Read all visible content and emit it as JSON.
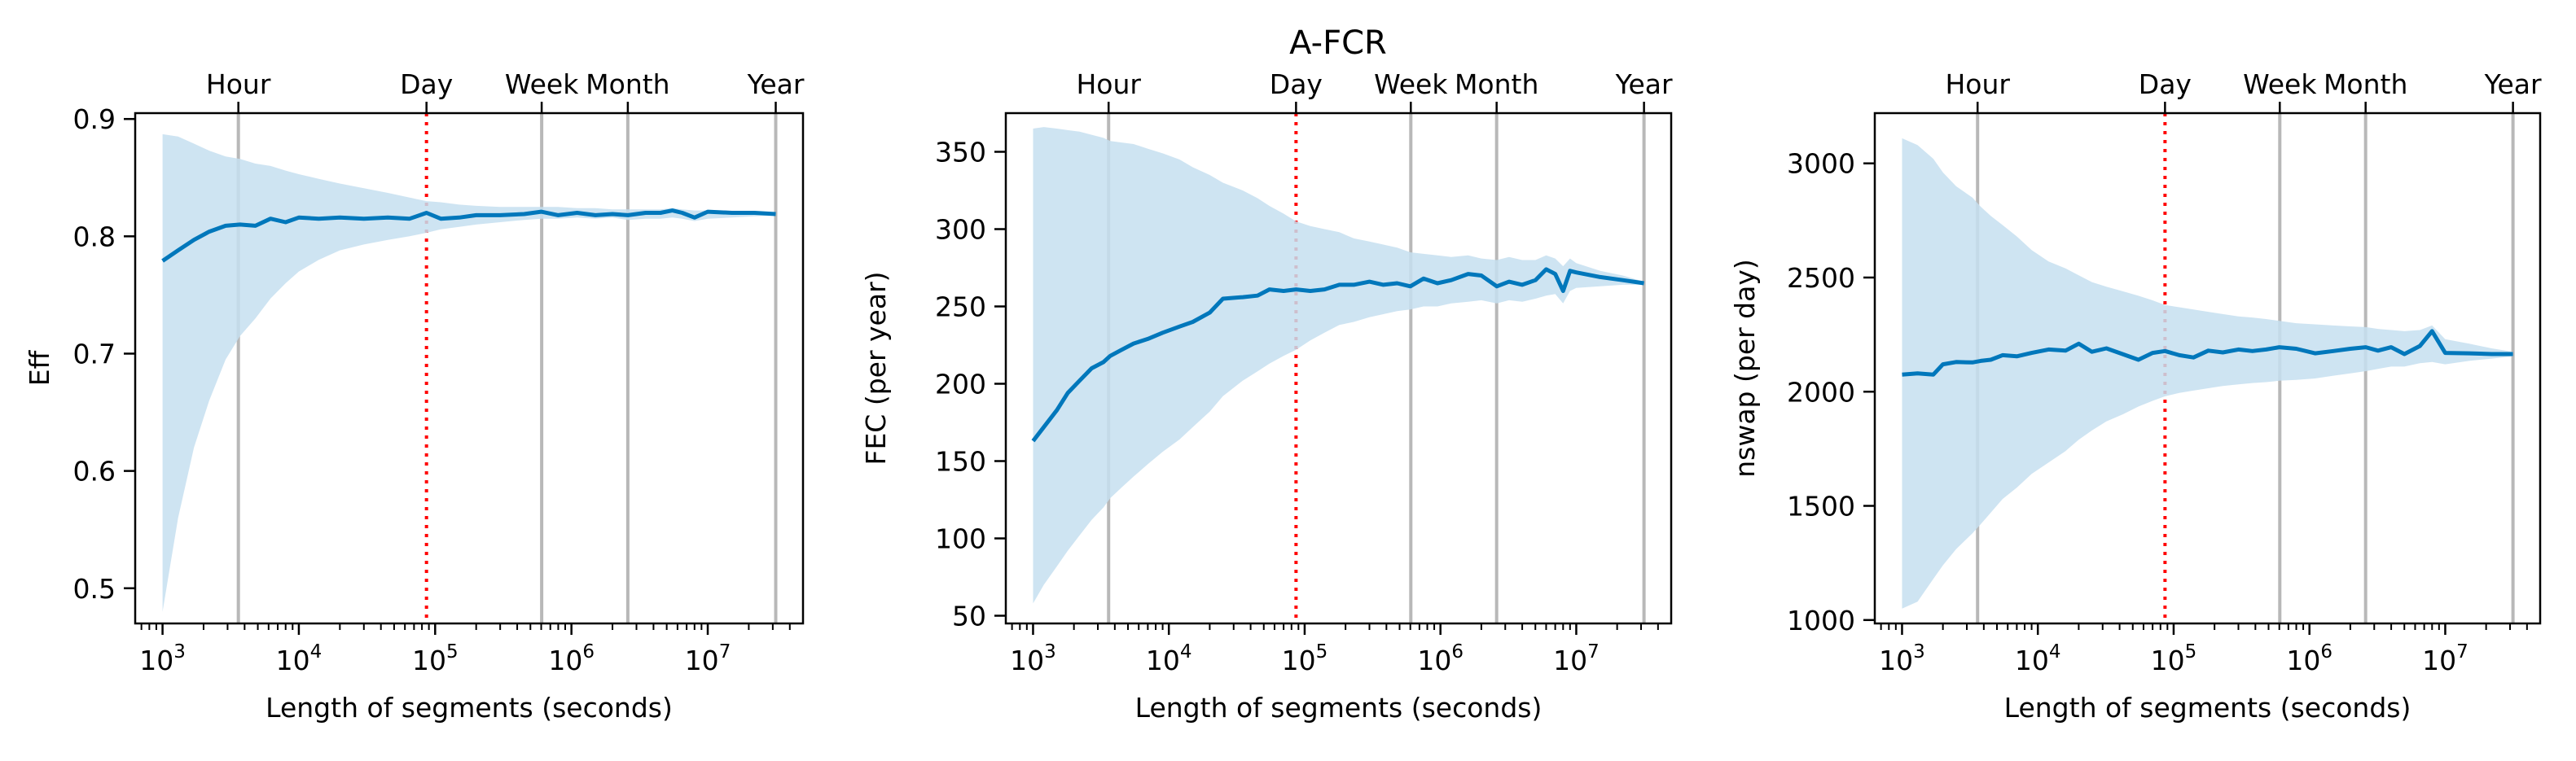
{
  "figure_title": "A-FCR",
  "colors": {
    "line": "#0077bb",
    "band": "#c6dff0",
    "ref_line": "#b8b8b8",
    "day_line": "#ff0000"
  },
  "chart_data": [
    {
      "type": "line",
      "title": "",
      "xlabel": "Length of segments (seconds)",
      "ylabel": "Eff",
      "xscale": "log",
      "xlim": [
        630,
        50000000
      ],
      "ylim": [
        0.47,
        0.905
      ],
      "yticks": [
        0.5,
        0.6,
        0.7,
        0.8,
        0.9
      ],
      "ytick_labels": [
        "0.5",
        "0.6",
        "0.7",
        "0.8",
        "0.9"
      ],
      "xtick_exponents": [
        3,
        4,
        5,
        6,
        7
      ],
      "top_ticks": [
        {
          "label": "Hour",
          "x": 3600
        },
        {
          "label": "Day",
          "x": 86400
        },
        {
          "label": "Week",
          "x": 604800
        },
        {
          "label": "Month",
          "x": 2592000
        },
        {
          "label": "Year",
          "x": 31536000
        }
      ],
      "x": [
        1000,
        1300,
        1700,
        2200,
        2900,
        3700,
        4800,
        6200,
        8000,
        10000,
        14000,
        20000,
        30000,
        45000,
        65000,
        86400,
        110000,
        150000,
        200000,
        300000,
        450000,
        600000,
        800000,
        1100000,
        1500000,
        2000000,
        2600000,
        3500000,
        4500000,
        5500000,
        6500000,
        8000000,
        10000000,
        15000000,
        22000000,
        31536000
      ],
      "mean": [
        0.779,
        0.788,
        0.797,
        0.804,
        0.809,
        0.81,
        0.809,
        0.815,
        0.812,
        0.816,
        0.815,
        0.816,
        0.815,
        0.816,
        0.815,
        0.82,
        0.815,
        0.816,
        0.818,
        0.818,
        0.819,
        0.821,
        0.818,
        0.82,
        0.818,
        0.819,
        0.818,
        0.82,
        0.82,
        0.822,
        0.82,
        0.816,
        0.821,
        0.82,
        0.82,
        0.819
      ],
      "upper": [
        0.887,
        0.885,
        0.879,
        0.873,
        0.868,
        0.866,
        0.862,
        0.86,
        0.856,
        0.853,
        0.849,
        0.845,
        0.841,
        0.837,
        0.833,
        0.83,
        0.829,
        0.827,
        0.826,
        0.825,
        0.825,
        0.825,
        0.825,
        0.824,
        0.824,
        0.823,
        0.823,
        0.823,
        0.823,
        0.824,
        0.823,
        0.822,
        0.822,
        0.821,
        0.82,
        0.819
      ],
      "lower": [
        0.48,
        0.56,
        0.62,
        0.66,
        0.695,
        0.715,
        0.73,
        0.747,
        0.76,
        0.77,
        0.78,
        0.788,
        0.793,
        0.797,
        0.8,
        0.803,
        0.806,
        0.808,
        0.81,
        0.812,
        0.814,
        0.815,
        0.815,
        0.816,
        0.815,
        0.816,
        0.814,
        0.815,
        0.815,
        0.816,
        0.815,
        0.813,
        0.815,
        0.816,
        0.817,
        0.818
      ],
      "series": [
        {
          "name": "mean",
          "values_key": "mean"
        }
      ]
    },
    {
      "type": "line",
      "title": "",
      "xlabel": "Length of segments (seconds)",
      "ylabel": "FEC (per year)",
      "xscale": "log",
      "xlim": [
        630,
        50000000
      ],
      "ylim": [
        45,
        375
      ],
      "yticks": [
        50,
        100,
        150,
        200,
        250,
        300,
        350
      ],
      "ytick_labels": [
        "50",
        "100",
        "150",
        "200",
        "250",
        "300",
        "350"
      ],
      "xtick_exponents": [
        3,
        4,
        5,
        6,
        7
      ],
      "top_ticks": [
        {
          "label": "Hour",
          "x": 3600
        },
        {
          "label": "Day",
          "x": 86400
        },
        {
          "label": "Week",
          "x": 604800
        },
        {
          "label": "Month",
          "x": 2592000
        },
        {
          "label": "Year",
          "x": 31536000
        }
      ],
      "x": [
        1000,
        1200,
        1500,
        1800,
        2200,
        2700,
        3300,
        3700,
        4500,
        5500,
        7000,
        9000,
        12000,
        15000,
        20000,
        25000,
        35000,
        45000,
        55000,
        70000,
        86400,
        110000,
        140000,
        180000,
        230000,
        300000,
        380000,
        480000,
        600000,
        750000,
        950000,
        1200000,
        1600000,
        2000000,
        2600000,
        3200000,
        4000000,
        5000000,
        6000000,
        7000000,
        8000000,
        9000000,
        10000000,
        15000000,
        22000000,
        31536000
      ],
      "mean": [
        163,
        172,
        183,
        194,
        202,
        210,
        214,
        218,
        222,
        226,
        229,
        233,
        237,
        240,
        246,
        255,
        256,
        257,
        261,
        260,
        261,
        260,
        261,
        264,
        264,
        266,
        264,
        265,
        263,
        268,
        265,
        267,
        271,
        270,
        263,
        266,
        264,
        267,
        274,
        271,
        260,
        273,
        272,
        269,
        267,
        265
      ],
      "upper": [
        365,
        366,
        365,
        364,
        363,
        361,
        359,
        357,
        356,
        355,
        352,
        349,
        345,
        340,
        335,
        330,
        325,
        320,
        315,
        310,
        305,
        302,
        300,
        298,
        294,
        292,
        290,
        288,
        285,
        284,
        283,
        282,
        283,
        281,
        280,
        282,
        280,
        280,
        283,
        281,
        276,
        281,
        278,
        273,
        270,
        266
      ],
      "lower": [
        58,
        70,
        82,
        92,
        102,
        112,
        120,
        126,
        133,
        140,
        148,
        156,
        164,
        172,
        182,
        192,
        202,
        208,
        213,
        218,
        222,
        228,
        233,
        238,
        240,
        243,
        245,
        247,
        248,
        250,
        250,
        252,
        253,
        254,
        252,
        254,
        253,
        255,
        257,
        258,
        252,
        260,
        262,
        263,
        264,
        264
      ]
    },
    {
      "type": "line",
      "title": "",
      "xlabel": "Length of segments (seconds)",
      "ylabel": "nswap (per day)",
      "xscale": "log",
      "xlim": [
        630,
        50000000
      ],
      "ylim": [
        985,
        3220
      ],
      "yticks": [
        1000,
        1500,
        2000,
        2500,
        3000
      ],
      "ytick_labels": [
        "1000",
        "1500",
        "2000",
        "2500",
        "3000"
      ],
      "xtick_exponents": [
        3,
        4,
        5,
        6,
        7
      ],
      "top_ticks": [
        {
          "label": "Hour",
          "x": 3600
        },
        {
          "label": "Day",
          "x": 86400
        },
        {
          "label": "Week",
          "x": 604800
        },
        {
          "label": "Month",
          "x": 2592000
        },
        {
          "label": "Year",
          "x": 31536000
        }
      ],
      "x": [
        1000,
        1300,
        1700,
        2000,
        2500,
        3300,
        3800,
        4500,
        5500,
        7000,
        9000,
        12000,
        16000,
        20000,
        25000,
        32000,
        42000,
        55000,
        70000,
        86400,
        110000,
        140000,
        180000,
        230000,
        300000,
        380000,
        480000,
        600000,
        800000,
        1100000,
        1500000,
        2000000,
        2600000,
        3200000,
        4000000,
        5000000,
        6500000,
        8000000,
        10000000,
        15000000,
        22000000,
        31536000
      ],
      "mean": [
        2075,
        2080,
        2075,
        2120,
        2130,
        2128,
        2135,
        2140,
        2160,
        2155,
        2170,
        2185,
        2180,
        2210,
        2175,
        2190,
        2165,
        2140,
        2170,
        2178,
        2160,
        2150,
        2180,
        2172,
        2185,
        2178,
        2185,
        2195,
        2188,
        2168,
        2178,
        2188,
        2195,
        2180,
        2195,
        2165,
        2200,
        2265,
        2170,
        2168,
        2165,
        2165
      ],
      "upper": [
        3110,
        3080,
        3020,
        2960,
        2900,
        2850,
        2810,
        2770,
        2730,
        2680,
        2620,
        2570,
        2540,
        2510,
        2480,
        2460,
        2440,
        2420,
        2400,
        2380,
        2370,
        2360,
        2350,
        2340,
        2330,
        2325,
        2318,
        2310,
        2300,
        2295,
        2290,
        2286,
        2283,
        2275,
        2270,
        2265,
        2270,
        2290,
        2230,
        2210,
        2190,
        2175
      ],
      "lower": [
        1050,
        1080,
        1180,
        1240,
        1310,
        1380,
        1420,
        1470,
        1530,
        1580,
        1640,
        1690,
        1740,
        1790,
        1830,
        1870,
        1900,
        1935,
        1960,
        1980,
        1995,
        2005,
        2015,
        2025,
        2032,
        2038,
        2042,
        2048,
        2052,
        2058,
        2070,
        2080,
        2090,
        2100,
        2110,
        2110,
        2125,
        2130,
        2120,
        2135,
        2145,
        2155
      ]
    }
  ]
}
